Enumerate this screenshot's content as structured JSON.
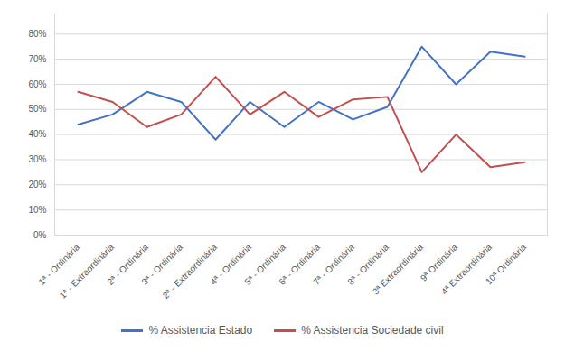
{
  "chart_data": {
    "type": "line",
    "categories": [
      "1ª - Ordinária",
      "1ª - Extraordinária",
      "2ª - Ordinária",
      "3ª - Ordinária",
      "2ª - Extraordinária",
      "4ª - Ordinária",
      "5ª - Ordinária",
      "6ª - Ordinária",
      "7ª - Ordinária",
      "8ª - Ordinária",
      "3ª Extraordinária",
      "9ª Ordinária",
      "4ª Extraordinária",
      "10ª Ordinária"
    ],
    "series": [
      {
        "name": "% Assistencia Estado",
        "color": "#4472C4",
        "values": [
          44,
          48,
          57,
          53,
          38,
          53,
          43,
          53,
          46,
          51,
          75,
          60,
          73,
          71
        ]
      },
      {
        "name": "% Assistencia Sociedade civil",
        "color": "#C0504D",
        "values": [
          57,
          53,
          43,
          48,
          63,
          48,
          57,
          47,
          54,
          55,
          25,
          40,
          27,
          29
        ]
      }
    ],
    "ylim": [
      0,
      88
    ],
    "yticks": [
      {
        "value": 0,
        "label": "0%"
      },
      {
        "value": 10,
        "label": "10%"
      },
      {
        "value": 20,
        "label": "20%"
      },
      {
        "value": 30,
        "label": "30%"
      },
      {
        "value": 40,
        "label": "40%"
      },
      {
        "value": 50,
        "label": "50%"
      },
      {
        "value": 60,
        "label": "60%"
      },
      {
        "value": 70,
        "label": "70%"
      },
      {
        "value": 80,
        "label": "80%"
      }
    ],
    "grid": true,
    "legend": "bottom"
  }
}
